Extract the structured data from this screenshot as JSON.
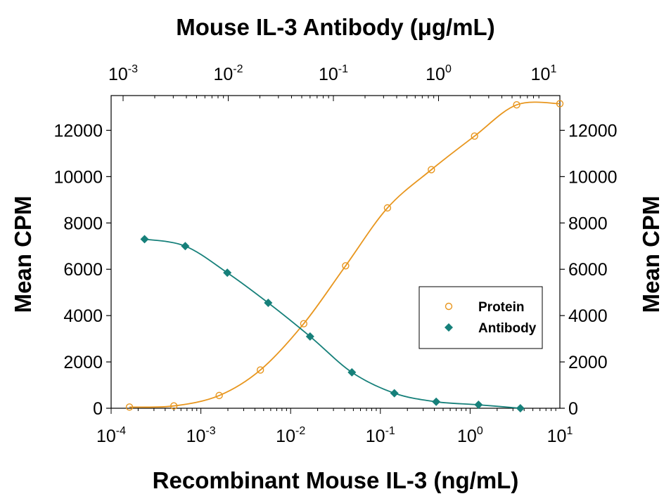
{
  "chart_data": {
    "type": "scatter",
    "title": "Mouse IL-3 Antibody (μg/mL)",
    "xlabel": "Recombinant Mouse IL-3 (ng/mL)",
    "ylabel_left": "Mean CPM",
    "ylabel_right": "Mean CPM",
    "x_scale": "log",
    "x_bottom_lim": [
      0.0001,
      10
    ],
    "x_top_lim": [
      0.001,
      10
    ],
    "ylim": [
      0,
      13500
    ],
    "y_ticks": [
      "0",
      "2000",
      "4000",
      "6000",
      "8000",
      "10000",
      "12000"
    ],
    "x_bottom_ticks": [
      {
        "base": "10",
        "exp": "-4"
      },
      {
        "base": "10",
        "exp": "-3"
      },
      {
        "base": "10",
        "exp": "-2"
      },
      {
        "base": "10",
        "exp": "-1"
      },
      {
        "base": "10",
        "exp": "0"
      },
      {
        "base": "10",
        "exp": "1"
      }
    ],
    "x_top_ticks": [
      {
        "base": "10",
        "exp": "-3"
      },
      {
        "base": "10",
        "exp": "-2"
      },
      {
        "base": "10",
        "exp": "-1"
      },
      {
        "base": "10",
        "exp": "0"
      },
      {
        "base": "10",
        "exp": "1"
      }
    ],
    "legend_position": "right",
    "series": [
      {
        "name": "Protein",
        "axis": "bottom",
        "marker": "open-circle",
        "color": "#E8961E",
        "x": [
          0.00016,
          0.0005,
          0.0016,
          0.0046,
          0.014,
          0.041,
          0.12,
          0.37,
          1.12,
          3.3,
          10
        ],
        "y": [
          50,
          100,
          550,
          1650,
          3650,
          6150,
          8650,
          10300,
          11750,
          13100,
          13150
        ]
      },
      {
        "name": "Antibody",
        "axis": "top",
        "marker": "filled-diamond",
        "color": "#16807A",
        "x": [
          0.0016,
          0.0039,
          0.0098,
          0.024,
          0.06,
          0.15,
          0.38,
          0.95,
          2.4,
          6
        ],
        "y": [
          7300,
          7000,
          5850,
          4550,
          3100,
          1550,
          650,
          280,
          150,
          0
        ]
      }
    ],
    "colors": {
      "protein": "#E8961E",
      "antibody": "#16807A",
      "axis": "#000000"
    }
  }
}
